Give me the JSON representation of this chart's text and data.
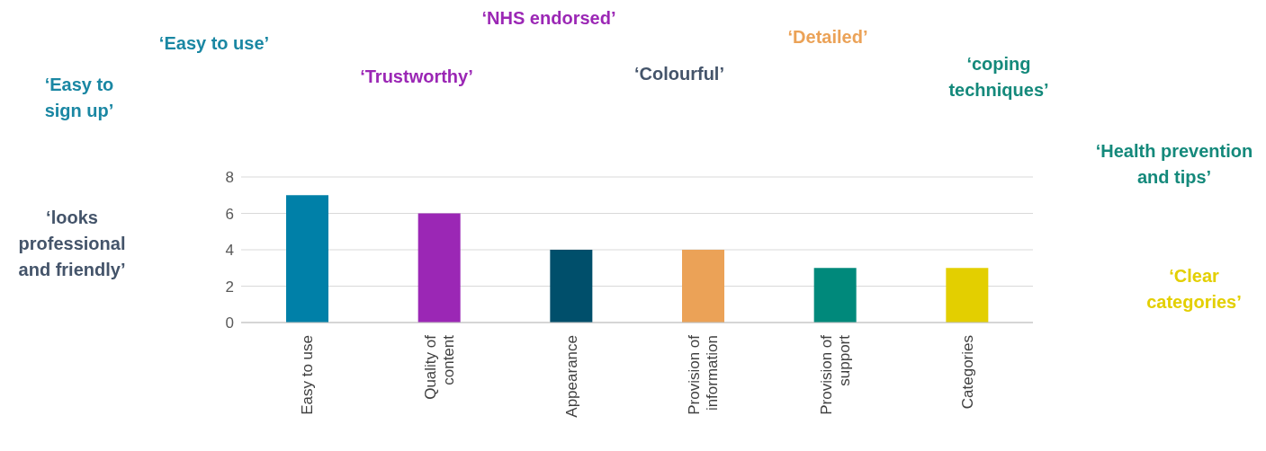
{
  "chart_data": {
    "type": "bar",
    "categories": [
      "Easy to use",
      "Quality of content",
      "Appearance",
      "Provision of information",
      "Provision of support",
      "Categories"
    ],
    "values": [
      7,
      6,
      4,
      4,
      3,
      3
    ],
    "colors": [
      "#0080a8",
      "#9b27b5",
      "#004f6b",
      "#eba257",
      "#00897b",
      "#e3cf00"
    ],
    "ylim": [
      0,
      8
    ],
    "yticks": [
      0,
      2,
      4,
      6,
      8
    ],
    "grid": "y",
    "annotations": [
      "‘Easy to sign up’",
      "‘Easy to use’",
      "‘NHS endorsed’",
      "‘Trustworthy’",
      "‘Colourful’",
      "‘Detailed’",
      "‘coping techniques’",
      "‘Health prevention and tips’",
      "‘looks professional and friendly’",
      "‘Clear categories’"
    ]
  }
}
